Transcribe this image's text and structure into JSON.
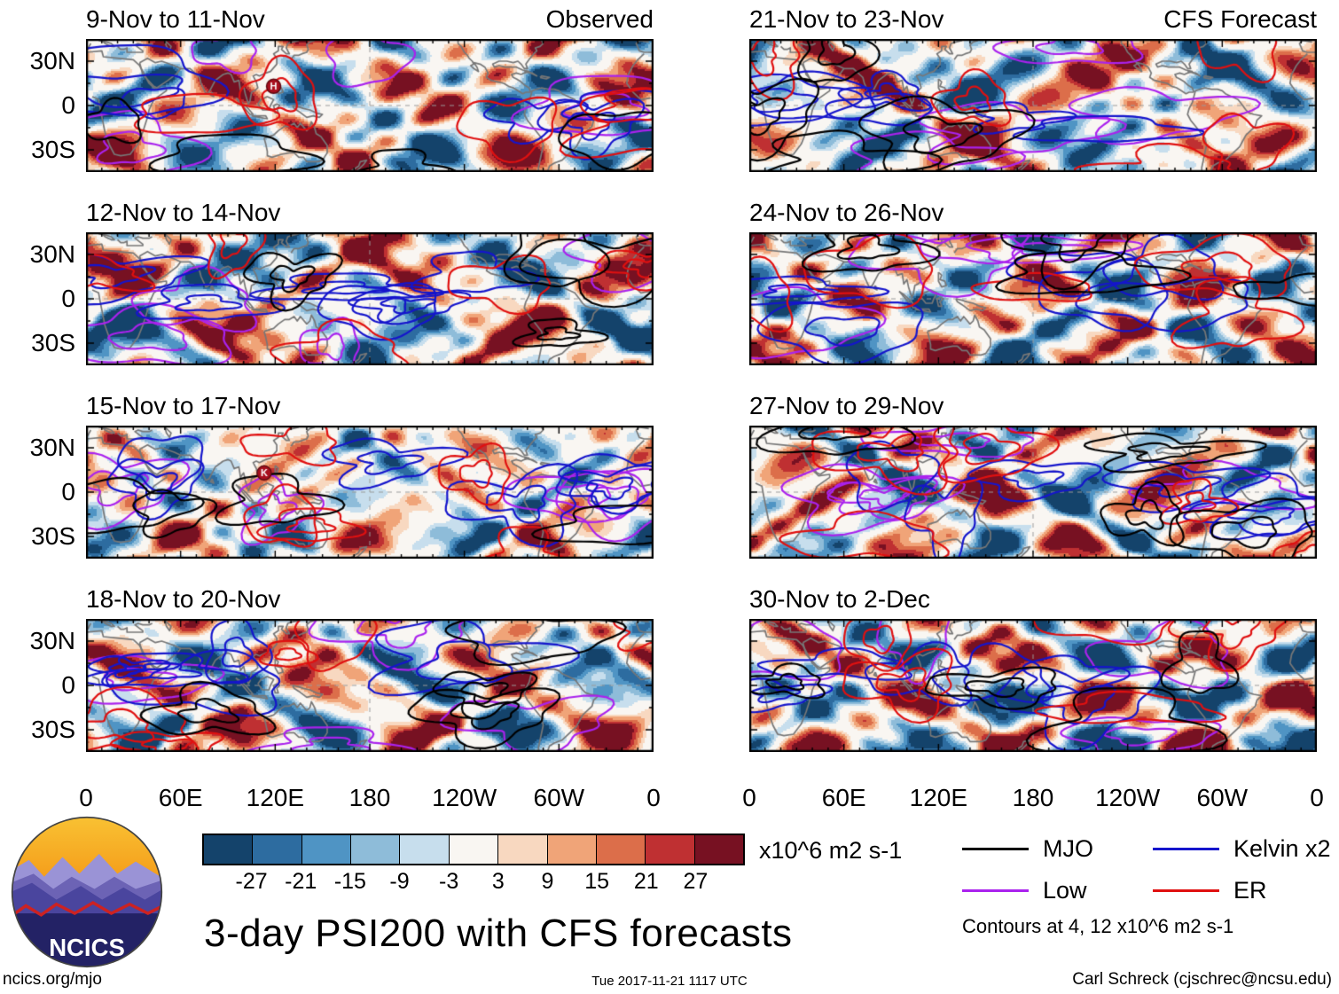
{
  "columns": {
    "left_header": "Observed",
    "right_header": "CFS Forecast"
  },
  "panels": [
    {
      "title": "9-Nov to 11-Nov"
    },
    {
      "title": "12-Nov to 14-Nov"
    },
    {
      "title": "15-Nov to 17-Nov"
    },
    {
      "title": "18-Nov to 20-Nov"
    },
    {
      "title": "21-Nov to 23-Nov"
    },
    {
      "title": "24-Nov to 26-Nov"
    },
    {
      "title": "27-Nov to 29-Nov"
    },
    {
      "title": "30-Nov to 2-Dec"
    }
  ],
  "axes": {
    "x_ticks": [
      "0",
      "60E",
      "120E",
      "180",
      "120W",
      "60W",
      "0"
    ],
    "y_ticks": [
      "30N",
      "0",
      "30S"
    ]
  },
  "colorbar": {
    "boundaries": [
      -27,
      -21,
      -15,
      -9,
      -3,
      3,
      9,
      15,
      21,
      27
    ],
    "colors": [
      "#14436b",
      "#2d6ca0",
      "#4f94c4",
      "#8ebcd9",
      "#c7deed",
      "#f9f6f2",
      "#f8d8c0",
      "#f0a478",
      "#dc6e4a",
      "#bf3032",
      "#771122"
    ],
    "units": "x10^6 m2 s-1"
  },
  "legend": {
    "items": [
      {
        "label": "MJO",
        "color": "#000000"
      },
      {
        "label": "Low",
        "color": "#aa22ee"
      },
      {
        "label": "Kelvin x2",
        "color": "#1515cc"
      },
      {
        "label": "ER",
        "color": "#e01010"
      }
    ],
    "note": "Contours at 4, 12 x10^6 m2 s-1"
  },
  "title": "3-day PSI200 with CFS forecasts",
  "logo_text": "NCICS",
  "footer": {
    "left": "ncics.org/mjo",
    "center": "Tue 2017-11-21 1117 UTC",
    "right": "Carl Schreck (cjschrec@ncsu.edu)"
  },
  "chart_data": {
    "type": "heatmap",
    "subtype": "filled-contour global anomaly maps with wave-filtered contour overlays, 2 columns x 4 rows",
    "title": "3-day PSI200 with CFS forecasts",
    "panel_grid": {
      "rows": 4,
      "cols": 2,
      "left_column": "Observed",
      "right_column": "CFS Forecast"
    },
    "panels": [
      {
        "title": "9-Nov to 11-Nov",
        "column": "Observed",
        "markers": [
          {
            "label": "H",
            "lon": 119,
            "lat": 13
          }
        ]
      },
      {
        "title": "12-Nov to 14-Nov",
        "column": "Observed",
        "markers": []
      },
      {
        "title": "15-Nov to 17-Nov",
        "column": "Observed",
        "markers": [
          {
            "label": "K",
            "lon": 113,
            "lat": 13
          }
        ]
      },
      {
        "title": "18-Nov to 20-Nov",
        "column": "Observed",
        "markers": []
      },
      {
        "title": "21-Nov to 23-Nov",
        "column": "CFS Forecast",
        "markers": []
      },
      {
        "title": "24-Nov to 26-Nov",
        "column": "CFS Forecast",
        "markers": []
      },
      {
        "title": "27-Nov to 29-Nov",
        "column": "CFS Forecast",
        "markers": []
      },
      {
        "title": "30-Nov to 2-Dec",
        "column": "CFS Forecast",
        "markers": []
      }
    ],
    "x_axis": {
      "label": "longitude",
      "range": [
        0,
        360
      ],
      "tick_labels": [
        "0",
        "60E",
        "120E",
        "180",
        "120W",
        "60W",
        "0"
      ]
    },
    "y_axis": {
      "label": "latitude",
      "range": [
        -45,
        45
      ],
      "tick_labels": [
        "30N",
        "0",
        "30S"
      ]
    },
    "fill_variable": "3-day mean 200 hPa streamfunction (PSI200) anomaly",
    "fill_units": "x10^6 m2 s-1",
    "fill_levels": [
      -27,
      -21,
      -15,
      -9,
      -3,
      3,
      9,
      15,
      21,
      27
    ],
    "overlay_contours": [
      {
        "name": "MJO",
        "color": "black"
      },
      {
        "name": "Low",
        "color": "purple"
      },
      {
        "name": "Kelvin x2",
        "color": "blue"
      },
      {
        "name": "ER",
        "color": "red"
      }
    ],
    "contour_levels": [
      4,
      12
    ],
    "contour_units": "x10^6 m2 s-1",
    "grid": "equator and 180 meridian shown as dashed reference lines; gray coastlines"
  }
}
